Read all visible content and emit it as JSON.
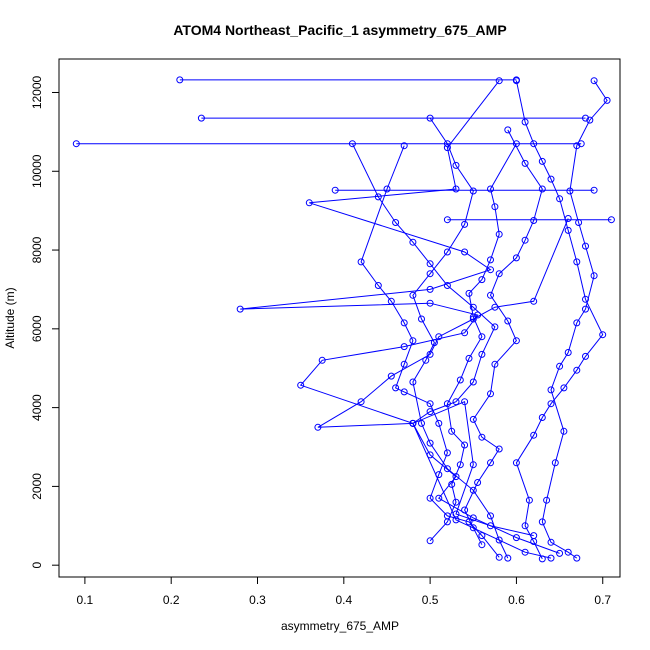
{
  "chart_data": {
    "type": "line",
    "title": "ATOM4 Northeast_Pacific_1 asymmetry_675_AMP",
    "xlabel": "asymmetry_675_AMP",
    "ylabel": "Altitude (m)",
    "xlim": [
      0.07,
      0.72
    ],
    "ylim": [
      -300,
      12850
    ],
    "xticks": [
      "0.1",
      "0.2",
      "0.3",
      "0.4",
      "0.5",
      "0.6",
      "0.7"
    ],
    "yticks": [
      "0",
      "2000",
      "4000",
      "6000",
      "8000",
      "10000",
      "12000"
    ],
    "grid": false,
    "series_color": "#0000ff",
    "series": [
      {
        "profile": 1,
        "x": [
          0.67,
          0.66,
          0.64,
          0.63,
          0.635,
          0.645,
          0.655,
          0.64,
          0.65,
          0.66,
          0.67,
          0.68,
          0.69,
          0.68,
          0.672,
          0.662,
          0.67,
          0.685,
          0.705,
          0.69
        ],
        "y": [
          180,
          330,
          580,
          1100,
          1650,
          2600,
          3400,
          4450,
          5050,
          5400,
          6150,
          6500,
          7350,
          8100,
          8700,
          9500,
          10650,
          11300,
          11800,
          12300
        ]
      },
      {
        "profile": 2,
        "x": [
          0.63,
          0.62,
          0.61,
          0.615,
          0.6,
          0.62,
          0.63,
          0.64,
          0.655,
          0.67,
          0.68,
          0.7,
          0.68,
          0.67,
          0.66,
          0.65,
          0.64,
          0.63,
          0.62,
          0.61,
          0.6
        ],
        "y": [
          160,
          600,
          1000,
          1650,
          2600,
          3300,
          3750,
          4100,
          4500,
          4950,
          5300,
          5850,
          6750,
          7700,
          8500,
          9300,
          9800,
          10250,
          10700,
          11250,
          12300
        ]
      },
      {
        "profile": 3,
        "x": [
          0.56,
          0.55,
          0.54,
          0.555,
          0.57,
          0.58,
          0.56,
          0.55,
          0.57,
          0.575,
          0.6,
          0.59,
          0.57,
          0.58,
          0.6,
          0.61,
          0.62,
          0.63,
          0.61,
          0.59
        ],
        "y": [
          520,
          950,
          1400,
          2100,
          2600,
          2950,
          3250,
          3700,
          4350,
          5100,
          5700,
          6200,
          6850,
          7400,
          7800,
          8250,
          8750,
          9550,
          10200,
          11050
        ]
      },
      {
        "profile": 4,
        "x": [
          0.5,
          0.52,
          0.53,
          0.525,
          0.535,
          0.54,
          0.525,
          0.52,
          0.535,
          0.545,
          0.56,
          0.55,
          0.545,
          0.56,
          0.57,
          0.58,
          0.575,
          0.57,
          0.6
        ],
        "y": [
          620,
          1100,
          1600,
          2050,
          2550,
          3050,
          3400,
          4100,
          4700,
          5250,
          5800,
          6300,
          6900,
          7250,
          7750,
          8400,
          9100,
          9550,
          10700
        ]
      },
      {
        "profile": 5,
        "x": [
          0.59,
          0.58,
          0.57,
          0.55,
          0.52,
          0.5,
          0.49,
          0.48,
          0.495,
          0.505,
          0.49,
          0.48,
          0.5,
          0.52,
          0.54,
          0.55,
          0.53,
          0.52,
          0.5
        ],
        "y": [
          180,
          640,
          1250,
          1900,
          2450,
          3100,
          3600,
          4650,
          5200,
          5650,
          6250,
          6850,
          7400,
          7950,
          8650,
          9500,
          10150,
          10700,
          11350
        ]
      },
      {
        "profile": 6,
        "x": [
          0.58,
          0.56,
          0.545,
          0.52,
          0.5,
          0.51,
          0.52,
          0.51,
          0.5,
          0.47,
          0.46,
          0.47,
          0.48,
          0.47,
          0.455,
          0.44,
          0.42,
          0.45,
          0.47
        ],
        "y": [
          200,
          750,
          1100,
          1250,
          1700,
          2300,
          2850,
          3600,
          4100,
          4400,
          4500,
          5100,
          5700,
          6150,
          6700,
          7100,
          7700,
          9550,
          10650
        ]
      },
      {
        "profile": 7,
        "x": [
          0.65,
          0.6,
          0.55,
          0.51,
          0.53,
          0.5,
          0.48,
          0.5,
          0.53,
          0.55,
          0.56,
          0.575,
          0.55,
          0.52,
          0.5,
          0.48,
          0.46,
          0.44,
          0.41
        ],
        "y": [
          300,
          700,
          1200,
          1700,
          2250,
          2800,
          3600,
          3900,
          4150,
          4650,
          5350,
          6050,
          6550,
          7100,
          7650,
          8200,
          8700,
          9350,
          10700
        ]
      },
      {
        "profile": 8,
        "x": [
          0.62,
          0.57,
          0.53,
          0.55,
          0.54,
          0.48,
          0.35,
          0.375,
          0.47,
          0.54,
          0.555,
          0.5,
          0.28,
          0.5,
          0.57,
          0.54,
          0.36,
          0.53,
          0.52,
          0.58
        ],
        "y": [
          750,
          1000,
          1300,
          2550,
          4150,
          3600,
          4570,
          5200,
          5550,
          5900,
          6350,
          6650,
          6500,
          7000,
          7500,
          7950,
          9200,
          9550,
          10600,
          12300
        ]
      },
      {
        "profile": 9,
        "x": [
          0.64,
          0.61,
          0.53,
          0.48,
          0.37,
          0.42,
          0.455,
          0.5,
          0.51,
          0.55,
          0.575,
          0.62,
          0.66
        ],
        "y": [
          180,
          330,
          1150,
          3600,
          3500,
          4150,
          4800,
          5350,
          5800,
          6250,
          6550,
          6700,
          8800
        ]
      },
      {
        "profile": 10,
        "x": [
          0.21,
          0.6
        ],
        "y": [
          12320,
          12320
        ]
      },
      {
        "profile": 11,
        "x": [
          0.235,
          0.68
        ],
        "y": [
          11350,
          11350
        ]
      },
      {
        "profile": 12,
        "x": [
          0.09,
          0.675
        ],
        "y": [
          10700,
          10700
        ]
      },
      {
        "profile": 13,
        "x": [
          0.39,
          0.69
        ],
        "y": [
          9520,
          9520
        ]
      },
      {
        "profile": 14,
        "x": [
          0.52,
          0.71
        ],
        "y": [
          8770,
          8770
        ]
      }
    ]
  }
}
